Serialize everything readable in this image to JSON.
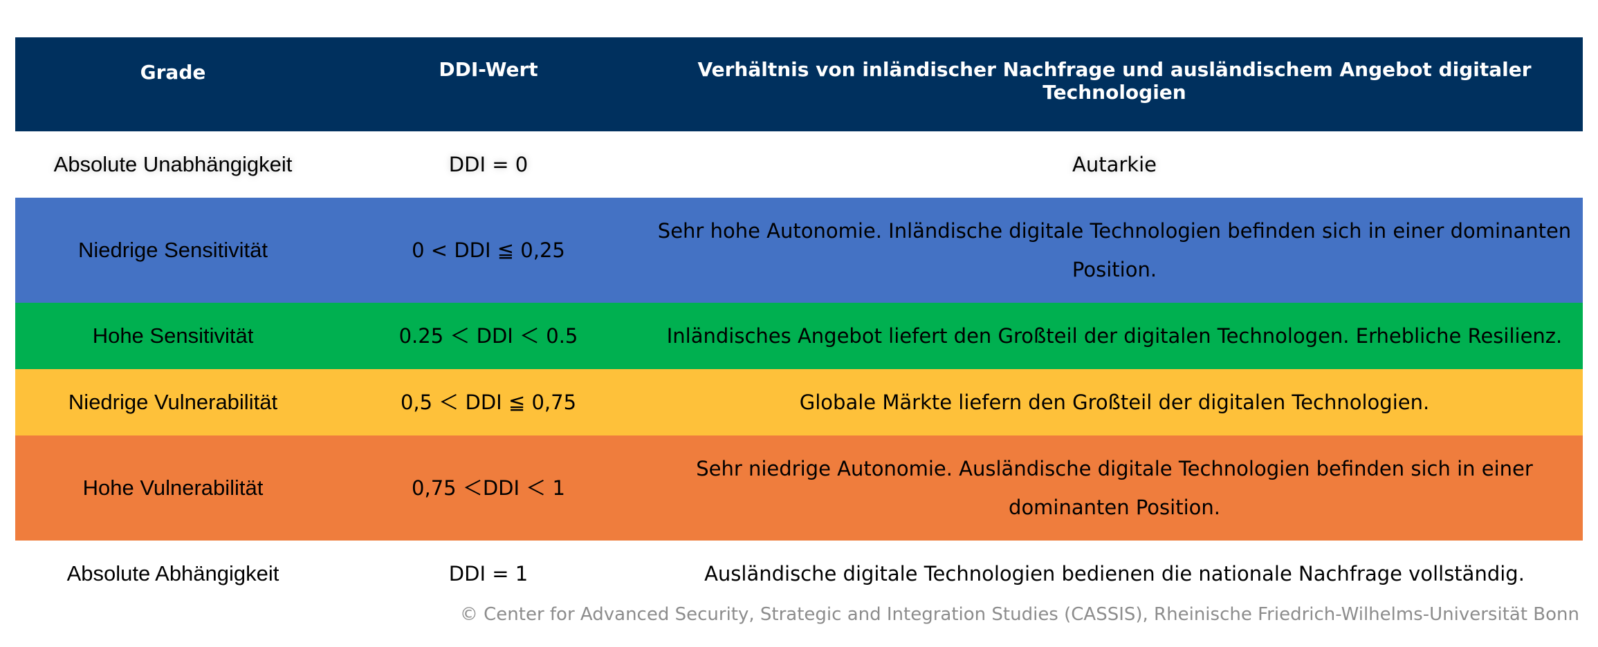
{
  "table": {
    "headers": {
      "grade": "Grade",
      "value": "DDI-Wert",
      "relation": "Verhältnis von inländischer Nachfrage und ausländischem Angebot digitaler Technologien"
    },
    "rows": [
      {
        "grade": "Absolute Unabhängigkeit",
        "value": "DDI = 0",
        "relation": "Autarkie",
        "color": "#ffffff"
      },
      {
        "grade": "Niedrige Sensitivität",
        "value": "0 < DDI ≦ 0,25",
        "relation": "Sehr hohe Autonomie. Inländische digitale Technologien befinden sich in einer dominanten Position.",
        "color": "#4472c4"
      },
      {
        "grade": "Hohe Sensitivität",
        "value": "0.25 ＜ DDI ＜ 0.5",
        "relation": "Inländisches Angebot liefert den Großteil der digitalen Technologen. Erhebliche Resilienz.",
        "color": "#00b050"
      },
      {
        "grade": "Niedrige Vulnerabilität",
        "value": "0,5 ＜ DDI ≦ 0,75",
        "relation": "Globale Märkte liefern den Großteil der digitalen Technologien.",
        "color": "#fec13a"
      },
      {
        "grade": "Hohe Vulnerabilität",
        "value": "0,75 ＜DDI ＜ 1",
        "relation": "Sehr niedrige Autonomie. Ausländische digitale Technologien befinden sich in einer dominanten Position.",
        "color": "#ef7d3d"
      },
      {
        "grade": "Absolute Abhängigkeit",
        "value": "DDI = 1",
        "relation": "Ausländische digitale Technologien bedienen die nationale Nachfrage vollständig.",
        "color": "#ffffff"
      }
    ]
  },
  "copyright": "© Center for Advanced Security, Strategic and Integration Studies (CASSIS), Rheinische Friedrich-Wilhelms-Universität Bonn",
  "colors": {
    "header_bg": "#00305e",
    "header_text": "#ffffff",
    "copyright_text": "#8c8c8c"
  }
}
